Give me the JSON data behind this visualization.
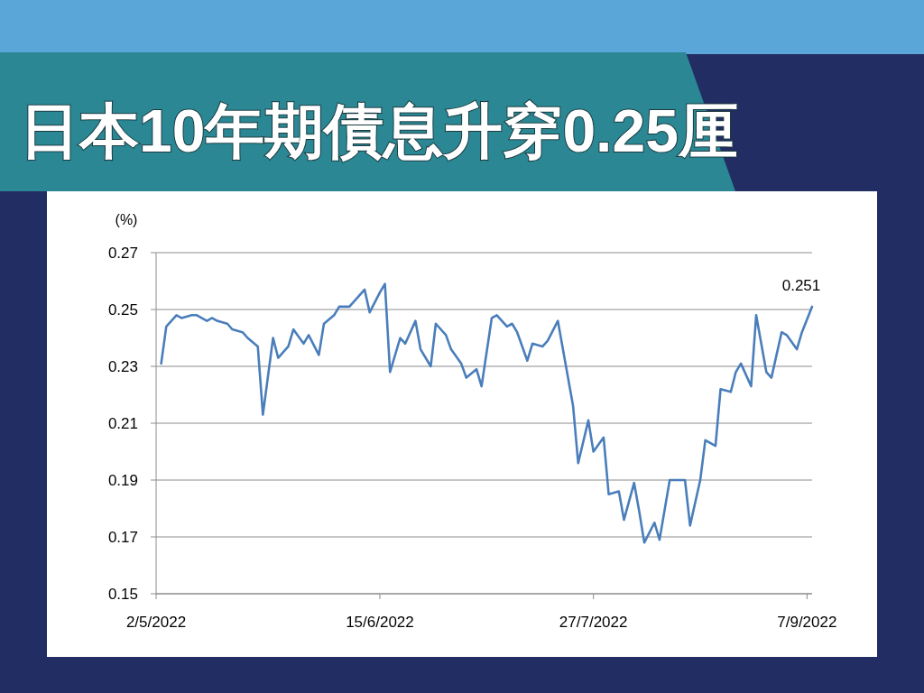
{
  "chart_data": {
    "type": "line",
    "title": "日本10年期債息升穿0.25厘",
    "ylabel": "(%)",
    "xlim": [
      "2022-05-02",
      "2022-09-08"
    ],
    "xticks": [
      {
        "value": "2022-05-02",
        "label": "2/5/2022"
      },
      {
        "value": "2022-06-15",
        "label": "15/6/2022"
      },
      {
        "value": "2022-07-27",
        "label": "27/7/2022"
      },
      {
        "value": "2022-09-07",
        "label": "7/9/2022"
      }
    ],
    "ylim": [
      0.15,
      0.27
    ],
    "yticks": [
      0.15,
      0.17,
      0.19,
      0.21,
      0.23,
      0.25,
      0.27
    ],
    "grid": "y",
    "x": [
      "2022-05-03",
      "2022-05-04",
      "2022-05-06",
      "2022-05-07",
      "2022-05-09",
      "2022-05-10",
      "2022-05-12",
      "2022-05-13",
      "2022-05-14",
      "2022-05-16",
      "2022-05-17",
      "2022-05-19",
      "2022-05-20",
      "2022-05-22",
      "2022-05-23",
      "2022-05-25",
      "2022-05-26",
      "2022-05-28",
      "2022-05-29",
      "2022-05-31",
      "2022-06-01",
      "2022-06-03",
      "2022-06-04",
      "2022-06-06",
      "2022-06-07",
      "2022-06-09",
      "2022-06-10",
      "2022-06-12",
      "2022-06-13",
      "2022-06-15",
      "2022-06-16",
      "2022-06-17",
      "2022-06-19",
      "2022-06-20",
      "2022-06-22",
      "2022-06-23",
      "2022-06-25",
      "2022-06-26",
      "2022-06-28",
      "2022-06-29",
      "2022-07-01",
      "2022-07-02",
      "2022-07-04",
      "2022-07-05",
      "2022-07-07",
      "2022-07-08",
      "2022-07-10",
      "2022-07-11",
      "2022-07-12",
      "2022-07-14",
      "2022-07-15",
      "2022-07-17",
      "2022-07-18",
      "2022-07-20",
      "2022-07-21",
      "2022-07-23",
      "2022-07-24",
      "2022-07-26",
      "2022-07-27",
      "2022-07-29",
      "2022-07-30",
      "2022-08-01",
      "2022-08-02",
      "2022-08-04",
      "2022-08-05",
      "2022-08-06",
      "2022-08-08",
      "2022-08-09",
      "2022-08-11",
      "2022-08-12",
      "2022-08-14",
      "2022-08-15",
      "2022-08-17",
      "2022-08-18",
      "2022-08-20",
      "2022-08-21",
      "2022-08-23",
      "2022-08-24",
      "2022-08-25",
      "2022-08-27",
      "2022-08-28",
      "2022-08-30",
      "2022-08-31",
      "2022-09-02",
      "2022-09-03",
      "2022-09-05",
      "2022-09-06",
      "2022-09-08"
    ],
    "series": [
      {
        "color": "#4a7ebb",
        "values": [
          0.231,
          0.244,
          0.248,
          0.247,
          0.248,
          0.248,
          0.246,
          0.247,
          0.246,
          0.245,
          0.243,
          0.242,
          0.24,
          0.237,
          0.213,
          0.24,
          0.233,
          0.237,
          0.243,
          0.238,
          0.241,
          0.234,
          0.245,
          0.248,
          0.251,
          0.251,
          0.253,
          0.257,
          0.249,
          0.256,
          0.259,
          0.228,
          0.24,
          0.238,
          0.246,
          0.236,
          0.23,
          0.245,
          0.241,
          0.236,
          0.231,
          0.226,
          0.229,
          0.223,
          0.247,
          0.248,
          0.244,
          0.245,
          0.242,
          0.232,
          0.238,
          0.237,
          0.239,
          0.246,
          0.236,
          0.216,
          0.196,
          0.211,
          0.2,
          0.205,
          0.185,
          0.186,
          0.176,
          0.189,
          0.179,
          0.168,
          0.175,
          0.169,
          0.19,
          0.19,
          0.19,
          0.174,
          0.19,
          0.204,
          0.202,
          0.222,
          0.221,
          0.228,
          0.231,
          0.223,
          0.248,
          0.228,
          0.226,
          0.242,
          0.241,
          0.236,
          0.242,
          0.251
        ]
      }
    ],
    "annotations": [
      {
        "text": "0.251",
        "x": "2022-09-08",
        "y": 0.251
      }
    ]
  }
}
